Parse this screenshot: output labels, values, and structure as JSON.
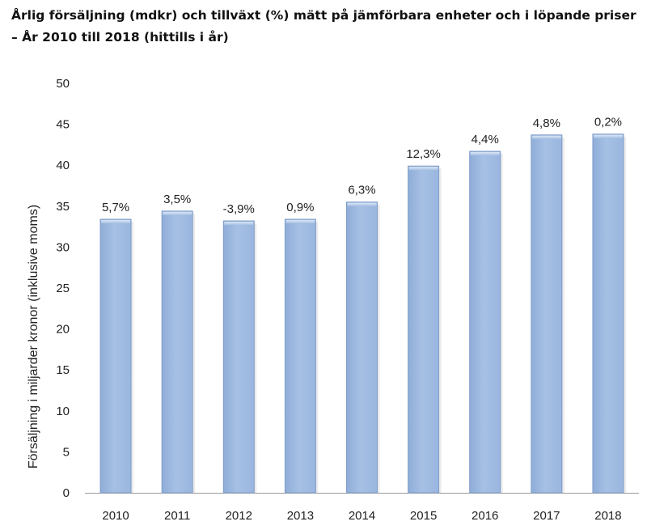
{
  "chart_data": {
    "type": "bar",
    "title": "Årlig försäljning (mdkr) och tillväxt (%) mätt på jämförbara enheter och i löpande priser",
    "subtitle": "– År 2010 till 2018 (hittills i år)",
    "xlabel": "",
    "ylabel": "Försäljning i miljarder kronor (inklusive moms)",
    "categories": [
      "2010",
      "2011",
      "2012",
      "2013",
      "2014",
      "2015",
      "2016",
      "2017",
      "2018"
    ],
    "values": [
      33.4,
      34.4,
      33.2,
      33.4,
      35.5,
      39.9,
      41.7,
      43.7,
      43.8
    ],
    "data_labels": [
      "5,7%",
      "3,5%",
      "-3,9%",
      "0,9%",
      "6,3%",
      "12,3%",
      "4,4%",
      "4,8%",
      "0,2%"
    ],
    "ylim": [
      0,
      50
    ],
    "yticks": [
      0,
      5,
      10,
      15,
      20,
      25,
      30,
      35,
      40,
      45,
      50
    ],
    "grid": false,
    "legend": "none",
    "colors": {
      "bar_fill": "#a0bbe0",
      "bar_stroke": "#7f9dc9",
      "bar_highlight": "#c9d9ef",
      "axis": "#9a9a9a"
    }
  }
}
